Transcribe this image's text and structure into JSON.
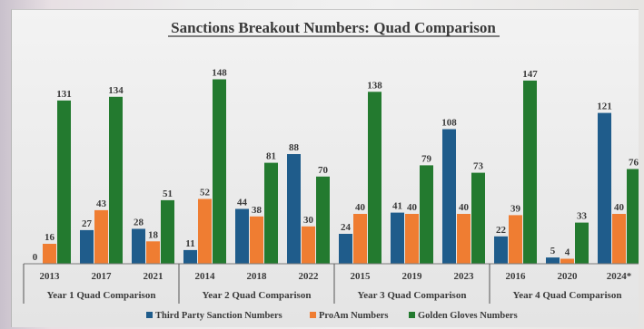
{
  "chart_data": {
    "type": "bar",
    "title": "Sanctions Breakout Numbers: Quad Comparison",
    "categories": [
      "2013",
      "2017",
      "2021",
      "2014",
      "2018",
      "2022",
      "2015",
      "2019",
      "2023",
      "2016",
      "2020",
      "2024*"
    ],
    "groups": [
      {
        "label": "Year 1 Quad Comparison",
        "categories": [
          "2013",
          "2017",
          "2021"
        ]
      },
      {
        "label": "Year 2 Quad Comparison",
        "categories": [
          "2014",
          "2018",
          "2022"
        ]
      },
      {
        "label": "Year 3 Quad Comparison",
        "categories": [
          "2015",
          "2019",
          "2023"
        ]
      },
      {
        "label": "Year 4 Quad Comparison",
        "categories": [
          "2016",
          "2020",
          "2024*"
        ]
      }
    ],
    "series": [
      {
        "name": "Third Party Sanction Numbers",
        "color": "#1f5c8b",
        "values": [
          0,
          27,
          28,
          11,
          44,
          88,
          24,
          41,
          108,
          22,
          5,
          121
        ]
      },
      {
        "name": "ProAm Numbers",
        "color": "#ef7d32",
        "values": [
          16,
          43,
          18,
          52,
          38,
          30,
          40,
          40,
          40,
          39,
          4,
          40
        ]
      },
      {
        "name": "Golden Gloves Numbers",
        "color": "#237a2f",
        "values": [
          131,
          134,
          51,
          148,
          81,
          70,
          138,
          79,
          73,
          147,
          33,
          76
        ]
      }
    ],
    "ylim": [
      0,
      160
    ],
    "legend": "bottom",
    "grid": false
  }
}
